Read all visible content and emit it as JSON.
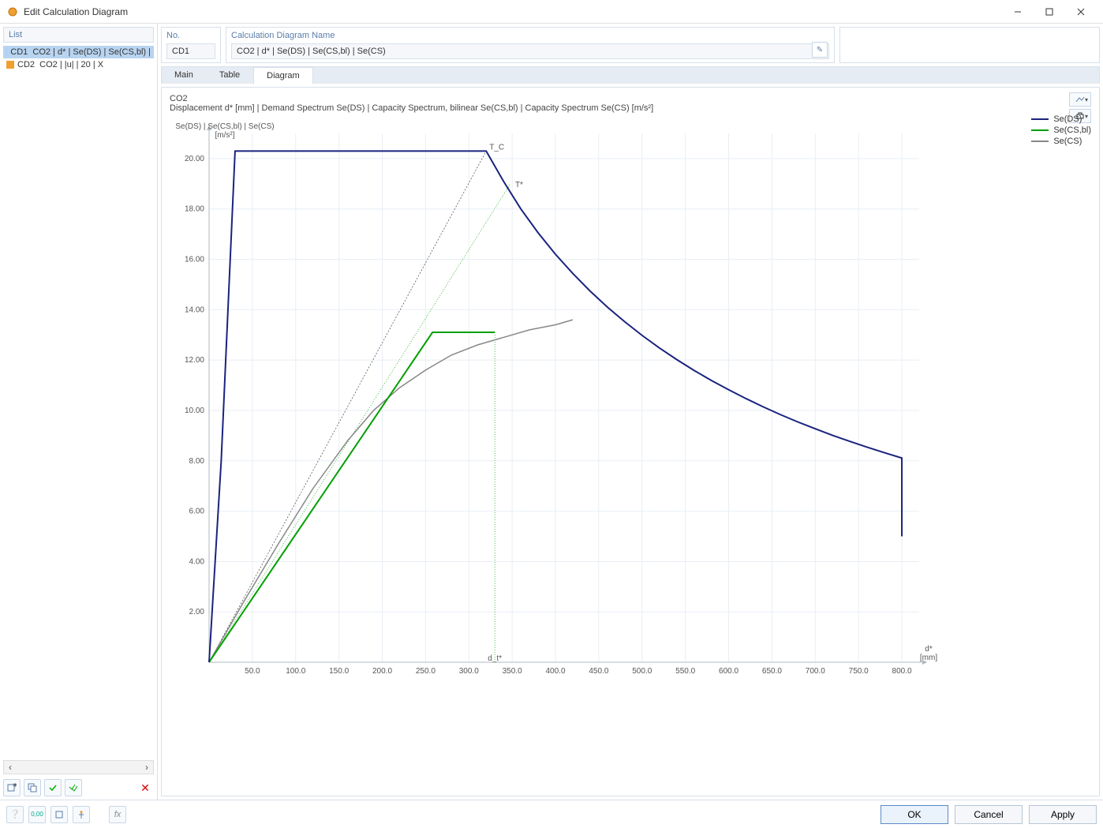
{
  "window": {
    "title": "Edit Calculation Diagram",
    "app_icon_color": "#f0a030"
  },
  "list": {
    "header": "List",
    "items": [
      {
        "id": "CD1",
        "label": "CO2 | d* | Se(DS) | Se(CS,bl) |",
        "color": "#a7cff2",
        "selected": true
      },
      {
        "id": "CD2",
        "label": "CO2 | |u| | 20 | X",
        "color": "#f0a030",
        "selected": false
      }
    ]
  },
  "fields": {
    "no_label": "No.",
    "no_value": "CD1",
    "name_label": "Calculation Diagram Name",
    "name_value": "CO2 | d* | Se(DS) | Se(CS,bl) | Se(CS)"
  },
  "tabs": {
    "main": "Main",
    "table": "Table",
    "diagram": "Diagram",
    "active": "diagram"
  },
  "diagram": {
    "title_line1": "CO2",
    "title_line2": "Displacement d* [mm] | Demand Spectrum Se(DS) | Capacity Spectrum, bilinear Se(CS,bl) | Capacity Spectrum Se(CS) [m/s²]",
    "y_axis_label": "Se(DS) | Se(CS,bl) | Se(CS)\n[m/s²]",
    "x_axis_label": "d*\n[mm]",
    "dt_label": "d_t*",
    "Tc_label": "T_C",
    "Tstar_label": "T*",
    "xlim": [
      0,
      820
    ],
    "ylim": [
      0,
      21
    ],
    "xticks": [
      50,
      100,
      150,
      200,
      250,
      300,
      350,
      400,
      450,
      500,
      550,
      600,
      650,
      700,
      750,
      800
    ],
    "yticks": [
      2,
      4,
      6,
      8,
      10,
      12,
      14,
      16,
      18,
      20
    ],
    "grid_color": "#e8eef5",
    "axis_color": "#b0b8c2",
    "background": "#ffffff",
    "dt_x": 330,
    "Tc_x": 320,
    "Tc_y": 20.3,
    "Tstar_x": 348,
    "Tstar_y": 19.0,
    "series": {
      "Se_DS": {
        "label": "Se(DS)",
        "color": "#1a237e",
        "width": 2,
        "points": [
          [
            0,
            0
          ],
          [
            14,
            8.0
          ],
          [
            30,
            20.3
          ],
          [
            320,
            20.3
          ],
          [
            340,
            19.1
          ],
          [
            360,
            18.0
          ],
          [
            380,
            17.05
          ],
          [
            400,
            16.2
          ],
          [
            420,
            15.44
          ],
          [
            440,
            14.74
          ],
          [
            460,
            14.1
          ],
          [
            480,
            13.52
          ],
          [
            500,
            12.98
          ],
          [
            520,
            12.48
          ],
          [
            540,
            12.02
          ],
          [
            560,
            11.59
          ],
          [
            580,
            11.19
          ],
          [
            600,
            10.82
          ],
          [
            620,
            10.47
          ],
          [
            640,
            10.14
          ],
          [
            660,
            9.83
          ],
          [
            680,
            9.54
          ],
          [
            700,
            9.27
          ],
          [
            720,
            9.01
          ],
          [
            740,
            8.77
          ],
          [
            760,
            8.54
          ],
          [
            780,
            8.32
          ],
          [
            800,
            8.11
          ],
          [
            800,
            5.0
          ]
        ]
      },
      "Se_CSbl": {
        "label": "Se(CS,bl)",
        "color": "#00a000",
        "width": 2,
        "points": [
          [
            0,
            0
          ],
          [
            258,
            13.1
          ],
          [
            330,
            13.1
          ]
        ]
      },
      "Se_CS": {
        "label": "Se(CS)",
        "color": "#888888",
        "width": 1.5,
        "points": [
          [
            0,
            0
          ],
          [
            40,
            2.4
          ],
          [
            80,
            4.7
          ],
          [
            120,
            6.9
          ],
          [
            160,
            8.8
          ],
          [
            190,
            10.0
          ],
          [
            220,
            10.9
          ],
          [
            250,
            11.6
          ],
          [
            280,
            12.2
          ],
          [
            310,
            12.6
          ],
          [
            340,
            12.9
          ],
          [
            370,
            13.2
          ],
          [
            400,
            13.4
          ],
          [
            420,
            13.6
          ]
        ]
      },
      "ray_Tc": {
        "color": "#444444",
        "dash": "2,2",
        "points": [
          [
            0,
            0
          ],
          [
            320,
            20.3
          ]
        ]
      },
      "ray_Tstar": {
        "color": "#00a000",
        "dash": "1,2",
        "points": [
          [
            0,
            0
          ],
          [
            348,
            19.0
          ]
        ]
      },
      "vline_dt": {
        "color": "#00a000",
        "dash": "1,2",
        "points": [
          [
            330,
            0
          ],
          [
            330,
            13.1
          ]
        ]
      }
    },
    "legend": [
      {
        "label": "Se(DS)",
        "color": "#1a237e"
      },
      {
        "label": "Se(CS,bl)",
        "color": "#00a000"
      },
      {
        "label": "Se(CS)",
        "color": "#888888"
      }
    ]
  },
  "buttons": {
    "ok": "OK",
    "cancel": "Cancel",
    "apply": "Apply"
  }
}
